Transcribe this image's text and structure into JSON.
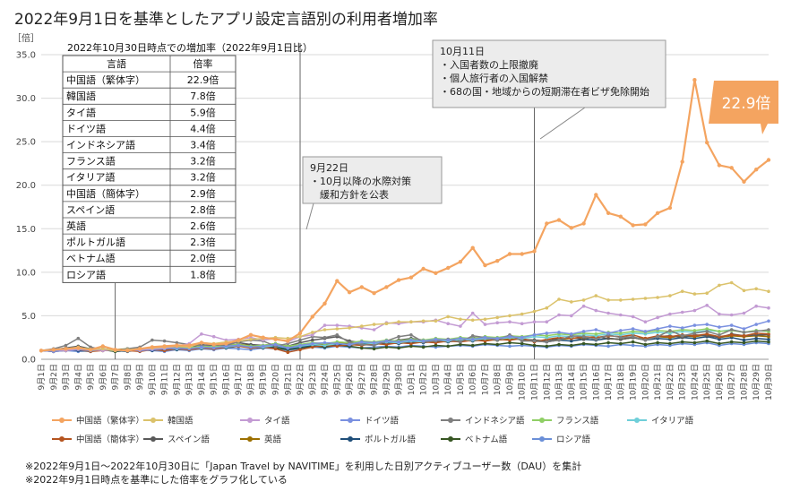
{
  "title": "2022年9月1日を基準としたアプリ設定言語別の利用者増加率",
  "footnotes": [
    "※2022年9月1日～2022年10月30日に「Japan Travel by NAVITIME」を利用した日別アクティブユーザー数（DAU）を集計",
    "※2022年9月1日時点を基準にした倍率をグラフ化している"
  ],
  "table": {
    "caption": "2022年10月30日時点での増加率（2022年9月1日比）",
    "headers": [
      "言語",
      "倍率"
    ],
    "rows": [
      [
        "中国語（繁体字）",
        "22.9倍"
      ],
      [
        "韓国語",
        "7.8倍"
      ],
      [
        "タイ語",
        "5.9倍"
      ],
      [
        "ドイツ語",
        "4.4倍"
      ],
      [
        "インドネシア語",
        "3.4倍"
      ],
      [
        "フランス語",
        "3.2倍"
      ],
      [
        "イタリア語",
        "3.2倍"
      ],
      [
        "中国語（簡体字）",
        "2.9倍"
      ],
      [
        "スペイン語",
        "2.8倍"
      ],
      [
        "英語",
        "2.6倍"
      ],
      [
        "ポルトガル語",
        "2.3倍"
      ],
      [
        "ベトナム語",
        "2.0倍"
      ],
      [
        "ロシア語",
        "1.8倍"
      ]
    ]
  },
  "annotations": [
    {
      "lines": [
        "9月22日",
        "・10月以降の水際対策",
        "　緩和方針を公表"
      ],
      "x_date": "9月22日"
    },
    {
      "lines": [
        "10月11日",
        "・入国者数の上限撤廃",
        "・個人旅行者の入国解禁",
        "・68の国・地域からの短期滞在者ビザ免除開始"
      ],
      "x_date": "10月11日"
    }
  ],
  "callout": {
    "text": "22.9倍",
    "color": "#f4a460"
  },
  "chart_data": {
    "type": "line",
    "ylabel": "［倍］",
    "ylim": [
      0,
      35
    ],
    "yticks": [
      "0.0",
      "5.0",
      "10.0",
      "15.0",
      "20.0",
      "25.0",
      "30.0",
      "35.0"
    ],
    "grid": true,
    "legend_position": "bottom",
    "x": [
      "9月1日",
      "9月2日",
      "9月3日",
      "9月4日",
      "9月5日",
      "9月6日",
      "9月7日",
      "9月8日",
      "9月9日",
      "9月10日",
      "9月11日",
      "9月12日",
      "9月13日",
      "9月14日",
      "9月15日",
      "9月16日",
      "9月17日",
      "9月18日",
      "9月19日",
      "9月20日",
      "9月21日",
      "9月22日",
      "9月23日",
      "9月24日",
      "9月25日",
      "9月26日",
      "9月27日",
      "9月28日",
      "9月29日",
      "9月30日",
      "10月1日",
      "10月2日",
      "10月3日",
      "10月4日",
      "10月5日",
      "10月6日",
      "10月7日",
      "10月8日",
      "10月9日",
      "10月10日",
      "10月11日",
      "10月12日",
      "10月13日",
      "10月14日",
      "10月15日",
      "10月16日",
      "10月17日",
      "10月18日",
      "10月19日",
      "10月20日",
      "10月21日",
      "10月22日",
      "10月23日",
      "10月24日",
      "10月25日",
      "10月26日",
      "10月27日",
      "10月28日",
      "10月29日",
      "10月30日"
    ],
    "series": [
      {
        "name": "中国語（繁体字）",
        "color": "#f4a460",
        "width": 2.2,
        "values": [
          1,
          1.1,
          1.2,
          1.3,
          1.1,
          1.5,
          1.1,
          1,
          1.2,
          1.4,
          1.5,
          1.6,
          1.6,
          1.9,
          1.7,
          1.8,
          2.2,
          2.8,
          2.5,
          2.3,
          2.1,
          3,
          4.9,
          6.4,
          9,
          7.7,
          8.3,
          7.6,
          8.3,
          9.1,
          9.4,
          10.4,
          9.9,
          10.5,
          11.2,
          12.8,
          10.8,
          11.3,
          12.1,
          12.1,
          12.4,
          15.6,
          16,
          15.1,
          15.6,
          18.9,
          16.8,
          16.4,
          15.4,
          15.5,
          16.8,
          17.4,
          22.7,
          32.1,
          24.9,
          22.3,
          22,
          20.4,
          21.8,
          22.9
        ]
      },
      {
        "name": "韓国語",
        "color": "#dbc26b",
        "width": 1.5,
        "values": [
          1,
          1.1,
          1.2,
          1.4,
          1.1,
          1.2,
          1,
          1.1,
          1.2,
          1.3,
          1.4,
          1.5,
          1.4,
          1.9,
          1.8,
          2,
          2.1,
          2.3,
          2.4,
          2.5,
          2.4,
          2.6,
          3.1,
          3.4,
          3.5,
          3.6,
          3.8,
          4,
          4.1,
          4.3,
          4.3,
          4.4,
          4.4,
          4.9,
          4.6,
          4.5,
          4.6,
          4.8,
          5,
          5.2,
          5.5,
          5.9,
          6.9,
          6.6,
          6.8,
          7.3,
          6.8,
          6.8,
          6.9,
          7,
          7.1,
          7.3,
          7.8,
          7.5,
          7.6,
          8.5,
          8.8,
          7.9,
          8.1,
          7.8
        ]
      },
      {
        "name": "タイ語",
        "color": "#c39bd3",
        "width": 1.5,
        "values": [
          1,
          1.1,
          1,
          1.2,
          1.1,
          1,
          1.1,
          1,
          1.1,
          1.2,
          1.3,
          1.5,
          1.8,
          2.9,
          2.6,
          2.2,
          2.3,
          2.5,
          2.2,
          2.4,
          2,
          2.6,
          2.8,
          3.9,
          3.9,
          3.8,
          3.6,
          3.4,
          4.2,
          4.1,
          4.3,
          4.3,
          4.5,
          4.1,
          3.8,
          5.3,
          4,
          4.2,
          4.3,
          4.1,
          4.3,
          4.3,
          5.1,
          5,
          6.1,
          5.6,
          5.3,
          5.1,
          4.9,
          4.3,
          4.8,
          5.2,
          5.4,
          5.6,
          6.2,
          5.2,
          5.1,
          5.3,
          6.1,
          5.9
        ]
      },
      {
        "name": "ドイツ語",
        "color": "#7a90e0",
        "width": 1.5,
        "values": [
          1,
          0.9,
          1,
          1.1,
          1,
          1.2,
          1,
          1.1,
          1,
          1.1,
          1.2,
          1.3,
          1.2,
          1.4,
          1.3,
          1.5,
          1.6,
          1.4,
          1.5,
          1.7,
          1.3,
          1.6,
          1.8,
          1.9,
          1.8,
          1.7,
          2,
          1.9,
          2.1,
          2,
          2.2,
          2.1,
          2.3,
          2.2,
          2.4,
          2.3,
          2.5,
          2.4,
          2.6,
          2.5,
          2.8,
          3,
          3.1,
          2.9,
          3.2,
          3.4,
          3,
          3.3,
          3.5,
          3.2,
          3.5,
          3.8,
          3.6,
          3.9,
          4,
          3.7,
          3.9,
          3.5,
          4,
          4.4
        ]
      },
      {
        "name": "インドネシア語",
        "color": "#7f7f7f",
        "width": 1.5,
        "values": [
          1,
          1.2,
          1.6,
          2.4,
          1.4,
          1.1,
          1,
          1.2,
          1.4,
          2.2,
          2.1,
          1.9,
          1.7,
          1.6,
          1.7,
          1.6,
          2,
          2.2,
          2.1,
          1.5,
          1.8,
          2.2,
          2.6,
          2.5,
          2.8,
          1.9,
          1.7,
          1.6,
          2.1,
          2.6,
          2.8,
          2,
          2.1,
          2.3,
          2,
          2.7,
          2.5,
          2.2,
          2.8,
          2.1,
          2.1,
          2,
          2.2,
          2.7,
          2.6,
          2.3,
          2.8,
          2.5,
          2.6,
          2.2,
          2.6,
          3.3,
          2.7,
          3,
          3.2,
          2.8,
          3.4,
          3.1,
          3.2,
          3.4
        ]
      },
      {
        "name": "フランス語",
        "color": "#8fcf65",
        "width": 1.5,
        "values": [
          1,
          1.1,
          1,
          1.3,
          1.2,
          1.1,
          1,
          1.2,
          1.1,
          1.3,
          1.2,
          1.4,
          1.3,
          1.5,
          1.4,
          1.6,
          1.7,
          1.5,
          1.6,
          1.8,
          1.5,
          1.7,
          1.9,
          1.8,
          2,
          1.9,
          2.1,
          2,
          2.2,
          2.1,
          2.3,
          2.2,
          2.4,
          2.3,
          2.5,
          2.4,
          2.6,
          2.5,
          2.7,
          2.6,
          2.8,
          2.7,
          2.9,
          2.8,
          3,
          2.9,
          3.1,
          3,
          3.2,
          3.1,
          3.3,
          3.2,
          3.4,
          3.3,
          3.5,
          3.2,
          3.3,
          3.1,
          3.3,
          3.2
        ]
      },
      {
        "name": "イタリア語",
        "color": "#6fcfd9",
        "width": 1.5,
        "values": [
          1,
          1,
          1.1,
          1.2,
          1,
          1.1,
          1,
          1.1,
          1.2,
          1.1,
          1.3,
          1.2,
          1.4,
          1.3,
          1.5,
          1.4,
          1.6,
          1.5,
          1.4,
          1.6,
          1.3,
          1.5,
          1.7,
          1.6,
          1.8,
          1.7,
          1.9,
          1.8,
          2,
          1.9,
          2.1,
          2,
          2.2,
          2.1,
          2.3,
          2.2,
          2.4,
          2.3,
          2.5,
          2.4,
          2.6,
          2.5,
          2.7,
          2.6,
          2.8,
          2.7,
          2.9,
          2.8,
          3,
          2.9,
          3.1,
          3,
          3.2,
          3.1,
          3.3,
          3.2,
          3.4,
          3.1,
          3.3,
          3.2
        ]
      },
      {
        "name": "中国語（簡体字）",
        "color": "#b5541f",
        "width": 1.5,
        "values": [
          1,
          0.9,
          1,
          1.1,
          0.9,
          1,
          1.1,
          1,
          0.9,
          1.1,
          1,
          1.2,
          1.1,
          1.3,
          1.2,
          1.4,
          1.5,
          1.3,
          1.4,
          1.2,
          0.8,
          1.1,
          1.4,
          1.6,
          1.5,
          1.7,
          1.6,
          1.8,
          1.7,
          1.9,
          1.8,
          2,
          1.9,
          2.1,
          2,
          2.2,
          2.1,
          2.3,
          2.2,
          2.4,
          2,
          2.3,
          2.5,
          2.4,
          2.6,
          2.5,
          2.7,
          2.6,
          2.8,
          2.4,
          2.7,
          2.6,
          2.8,
          2.7,
          2.9,
          2.6,
          2.8,
          2.7,
          3,
          2.9
        ]
      },
      {
        "name": "スペイン語",
        "color": "#595959",
        "width": 1.5,
        "values": [
          1,
          1.1,
          1.3,
          1.5,
          1.2,
          1,
          1.1,
          1,
          1.2,
          1.4,
          1.3,
          1.5,
          1.4,
          1.7,
          1.5,
          1.8,
          1.9,
          1.7,
          1.6,
          1.8,
          1.5,
          1.9,
          2.2,
          2.4,
          2.6,
          2.1,
          1.9,
          1.8,
          2,
          2.2,
          2.4,
          2.2,
          2.1,
          2.3,
          2,
          2.5,
          2.4,
          2.2,
          2.6,
          2.3,
          2.2,
          2.1,
          2.4,
          2.5,
          2.3,
          2.6,
          2.4,
          2.3,
          2.5,
          2.2,
          2.6,
          2.7,
          2.5,
          2.8,
          2.7,
          2.5,
          2.9,
          2.7,
          2.8,
          2.8
        ]
      },
      {
        "name": "英語",
        "color": "#9c6f00",
        "width": 1.5,
        "values": [
          1,
          1.1,
          1,
          1.2,
          1.1,
          1,
          1.1,
          1.2,
          1.1,
          1.3,
          1.2,
          1.4,
          1.3,
          1.5,
          1.4,
          1.6,
          1.7,
          1.6,
          1.5,
          1.7,
          1.4,
          1.6,
          1.8,
          1.7,
          1.9,
          1.8,
          2,
          1.9,
          2.1,
          2,
          2.2,
          2.1,
          2.2,
          2.3,
          2.2,
          2.4,
          2.3,
          2.2,
          2.4,
          2.3,
          2.2,
          2.1,
          2.3,
          2.4,
          2.5,
          2.6,
          2.4,
          2.3,
          2.5,
          2.4,
          2.6,
          2.5,
          2.7,
          2.6,
          2.8,
          2.5,
          2.7,
          2.6,
          2.7,
          2.6
        ]
      },
      {
        "name": "ポルトガル語",
        "color": "#1f4e79",
        "width": 1.5,
        "values": [
          1,
          0.9,
          1.1,
          1,
          0.9,
          1.2,
          1,
          0.9,
          1.1,
          1,
          1.2,
          1.1,
          1.3,
          1.2,
          1.4,
          1.3,
          1.5,
          1.4,
          1.3,
          1.5,
          1.2,
          1.4,
          1.6,
          1.5,
          1.7,
          1.6,
          1.8,
          1.7,
          1.9,
          1.8,
          2,
          1.9,
          2.1,
          2,
          2.2,
          2.1,
          2.3,
          2.2,
          2.4,
          2.3,
          2.1,
          2,
          2.2,
          2.1,
          2.3,
          2.2,
          2.4,
          2.3,
          2.5,
          2.2,
          2.4,
          2.3,
          2.5,
          2.4,
          2.6,
          2.3,
          2.5,
          2.2,
          2.4,
          2.3
        ]
      },
      {
        "name": "ベトナム語",
        "color": "#375623",
        "width": 1.5,
        "values": [
          1,
          1.1,
          1,
          1.2,
          1,
          1.1,
          0.9,
          1,
          1.1,
          1.2,
          1.1,
          1.3,
          1.2,
          1.4,
          1.3,
          1.5,
          1.6,
          1.4,
          1.5,
          1.3,
          1.1,
          1.3,
          1.5,
          1.4,
          1.6,
          1.5,
          1.3,
          1.2,
          1.4,
          1.3,
          1.5,
          1.4,
          1.6,
          1.5,
          1.7,
          1.6,
          1.8,
          1.7,
          1.9,
          1.8,
          1.6,
          1.5,
          1.7,
          1.6,
          1.8,
          1.7,
          1.9,
          1.8,
          2,
          1.7,
          1.9,
          1.8,
          2,
          1.9,
          2.1,
          1.8,
          2,
          1.9,
          2.1,
          2
        ]
      },
      {
        "name": "ロシア語",
        "color": "#6a8fd8",
        "width": 1.5,
        "values": [
          1,
          0.9,
          1,
          0.9,
          1,
          1.1,
          0.9,
          1,
          1.1,
          1,
          0.9,
          1.1,
          1,
          1.2,
          1.1,
          1.3,
          1.2,
          1.1,
          1.3,
          1.2,
          1,
          1.2,
          1.4,
          1.3,
          1.5,
          1.4,
          1.3,
          1.4,
          1.5,
          1.4,
          1.6,
          1.5,
          1.4,
          1.5,
          1.6,
          1.5,
          1.7,
          1.6,
          1.5,
          1.6,
          1.5,
          1.4,
          1.6,
          1.5,
          1.7,
          1.6,
          1.5,
          1.7,
          1.6,
          1.5,
          1.7,
          1.6,
          1.8,
          1.7,
          1.9,
          1.6,
          1.8,
          1.7,
          1.9,
          1.8
        ]
      }
    ]
  }
}
